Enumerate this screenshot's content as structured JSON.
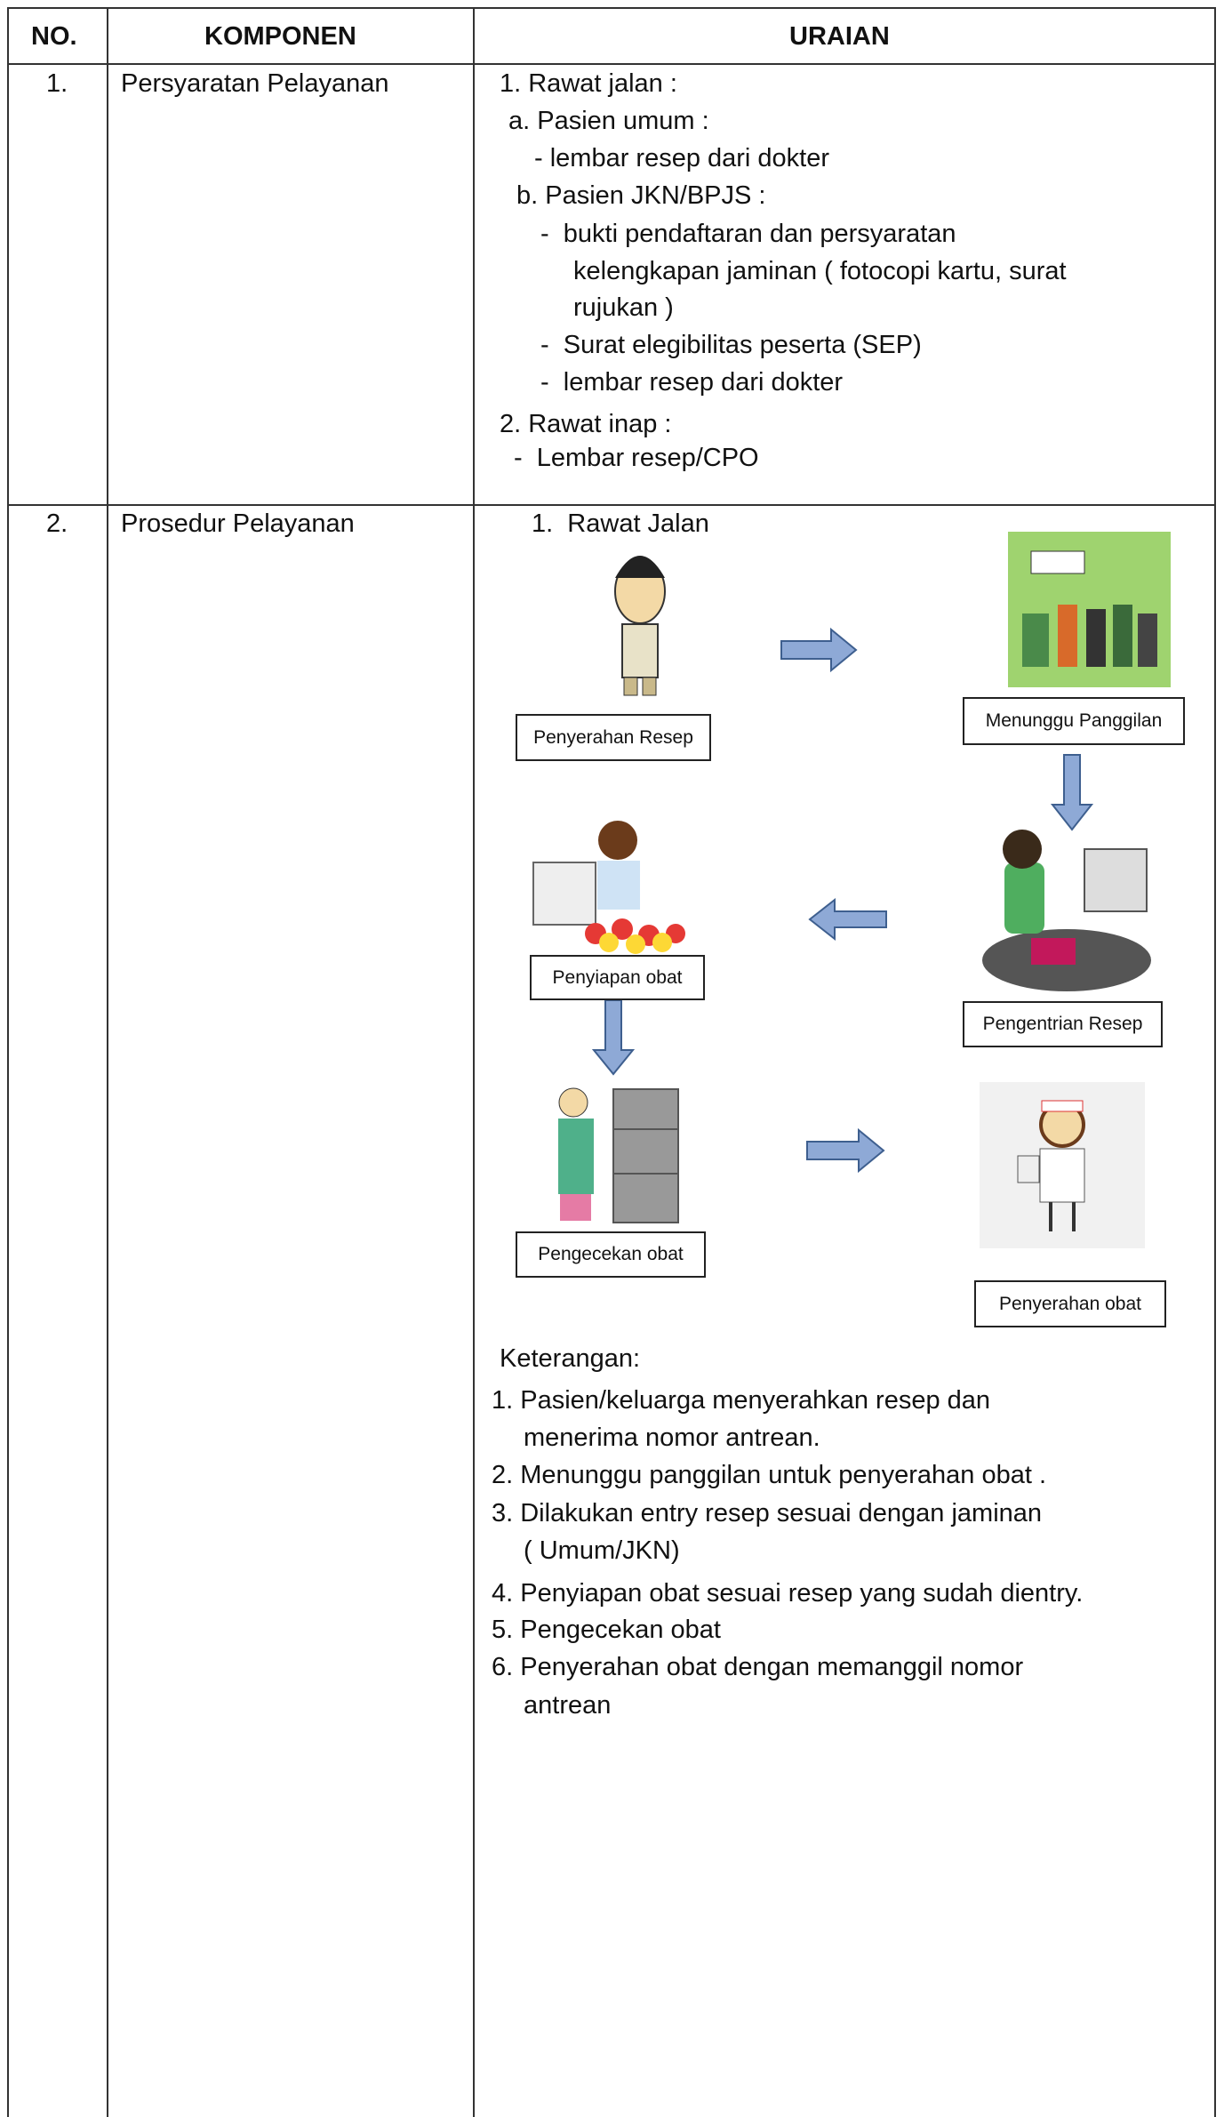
{
  "header": {
    "no": "NO.",
    "component": "KOMPONEN",
    "description": "URAIAN"
  },
  "rows": [
    {
      "no": "1.",
      "component": "Persyaratan Pelayanan",
      "lines": [
        "1. Rawat jalan :",
        "a. Pasien umum :",
        "- lembar resep dari dokter",
        "b. Pasien JKN/BPJS :",
        "-  bukti pendaftaran dan persyaratan",
        "kelengkapan jaminan ( fotocopi kartu, surat",
        "rujukan )",
        "-  Surat elegibilitas peserta (SEP)",
        "-  lembar resep dari dokter",
        "2. Rawat inap :",
        "-  Lembar resep/CPO"
      ]
    },
    {
      "no": "2.",
      "component": "Prosedur Pelayanan",
      "heading": "1.  Rawat Jalan",
      "flow": [
        "Penyerahan Resep",
        "Menunggu Panggilan",
        "Pengentrian Resep",
        "Penyiapan obat",
        "Pengecekan obat",
        "Penyerahan obat"
      ],
      "notes": [
        "Keterangan:",
        "1. Pasien/keluarga menyerahkan resep dan",
        "menerima nomor antrean.",
        "2. Menunggu panggilan untuk penyerahan obat .",
        "3. Dilakukan entry resep sesuai dengan jaminan",
        "( Umum/JKN)",
        "4. Penyiapan obat sesuai resep yang sudah dientry.",
        "5. Pengecekan obat",
        "6. Penyerahan obat dengan memanggil nomor",
        "antrean"
      ]
    }
  ]
}
